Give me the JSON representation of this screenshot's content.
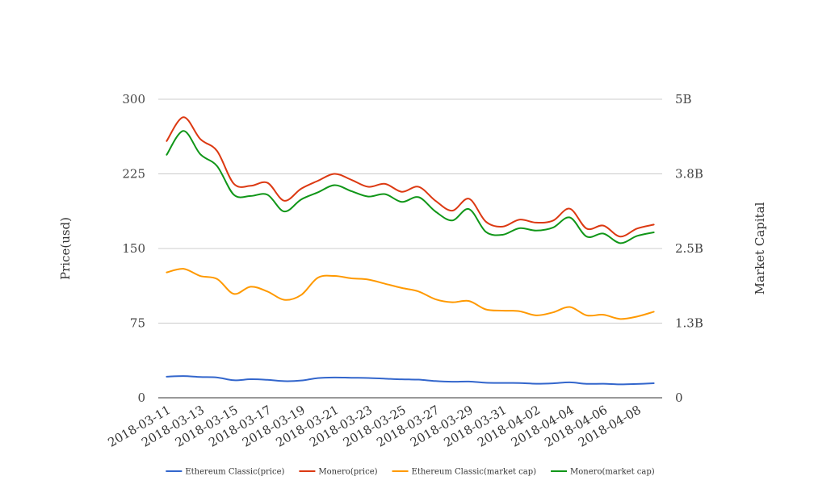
{
  "chart_data": {
    "type": "line",
    "title": "",
    "y_left_label": "Price(usd)",
    "y_right_label": "Market Capital",
    "y_left_ticks": [
      "0",
      "75",
      "150",
      "225",
      "300"
    ],
    "y_right_ticks": [
      "0",
      "1.3B",
      "2.5B",
      "3.8B",
      "5B"
    ],
    "ylim_left": [
      0,
      300
    ],
    "ylim_right": [
      0,
      5000000000
    ],
    "x_tick_labels": [
      "2018-03-11",
      "2018-03-13",
      "2018-03-15",
      "2018-03-17",
      "2018-03-19",
      "2018-03-21",
      "2018-03-23",
      "2018-03-25",
      "2018-03-27",
      "2018-03-29",
      "2018-03-31",
      "2018-04-02",
      "2018-04-04",
      "2018-04-06",
      "2018-04-08"
    ],
    "x": [
      "2018-03-11",
      "2018-03-12",
      "2018-03-13",
      "2018-03-14",
      "2018-03-15",
      "2018-03-16",
      "2018-03-17",
      "2018-03-18",
      "2018-03-19",
      "2018-03-20",
      "2018-03-21",
      "2018-03-22",
      "2018-03-23",
      "2018-03-24",
      "2018-03-25",
      "2018-03-26",
      "2018-03-27",
      "2018-03-28",
      "2018-03-29",
      "2018-03-30",
      "2018-03-31",
      "2018-04-01",
      "2018-04-02",
      "2018-04-03",
      "2018-04-04",
      "2018-04-05",
      "2018-04-06",
      "2018-04-07",
      "2018-04-08",
      "2018-04-09"
    ],
    "grid": true,
    "legend_position": "bottom",
    "series": [
      {
        "name": "Ethereum Classic(price)",
        "axis": "left",
        "color": "#3366cc",
        "values": [
          21.2,
          21.8,
          20.9,
          20.4,
          17.6,
          18.6,
          18.0,
          16.7,
          17.3,
          19.8,
          20.4,
          20.1,
          19.9,
          19.2,
          18.5,
          18.2,
          16.8,
          16.1,
          16.3,
          15.1,
          14.9,
          14.8,
          14.1,
          14.5,
          15.5,
          14.0,
          14.1,
          13.5,
          13.9,
          14.6
        ]
      },
      {
        "name": "Monero(price)",
        "axis": "left",
        "color": "#dc3912",
        "values": [
          258,
          282,
          260,
          248,
          215,
          213,
          216,
          198,
          210,
          218,
          225,
          219,
          212,
          215,
          207,
          212,
          198,
          188,
          200,
          177,
          172,
          179,
          176,
          178,
          190,
          170,
          173,
          162,
          170,
          174
        ]
      },
      {
        "name": "Ethereum Classic(market cap)",
        "axis": "right",
        "color": "#ff9900",
        "values": [
          2100000000,
          2160000000,
          2040000000,
          1990000000,
          1740000000,
          1860000000,
          1780000000,
          1640000000,
          1720000000,
          2010000000,
          2040000000,
          2000000000,
          1980000000,
          1910000000,
          1840000000,
          1780000000,
          1650000000,
          1600000000,
          1620000000,
          1480000000,
          1460000000,
          1450000000,
          1380000000,
          1430000000,
          1520000000,
          1380000000,
          1390000000,
          1320000000,
          1360000000,
          1440000000
        ]
      },
      {
        "name": "Monero(market cap)",
        "axis": "right",
        "color": "#109618",
        "values": [
          4070000000,
          4470000000,
          4080000000,
          3880000000,
          3400000000,
          3380000000,
          3400000000,
          3120000000,
          3320000000,
          3440000000,
          3560000000,
          3460000000,
          3370000000,
          3410000000,
          3280000000,
          3360000000,
          3120000000,
          2970000000,
          3160000000,
          2780000000,
          2730000000,
          2840000000,
          2800000000,
          2850000000,
          3020000000,
          2700000000,
          2750000000,
          2590000000,
          2710000000,
          2770000000
        ]
      }
    ]
  }
}
